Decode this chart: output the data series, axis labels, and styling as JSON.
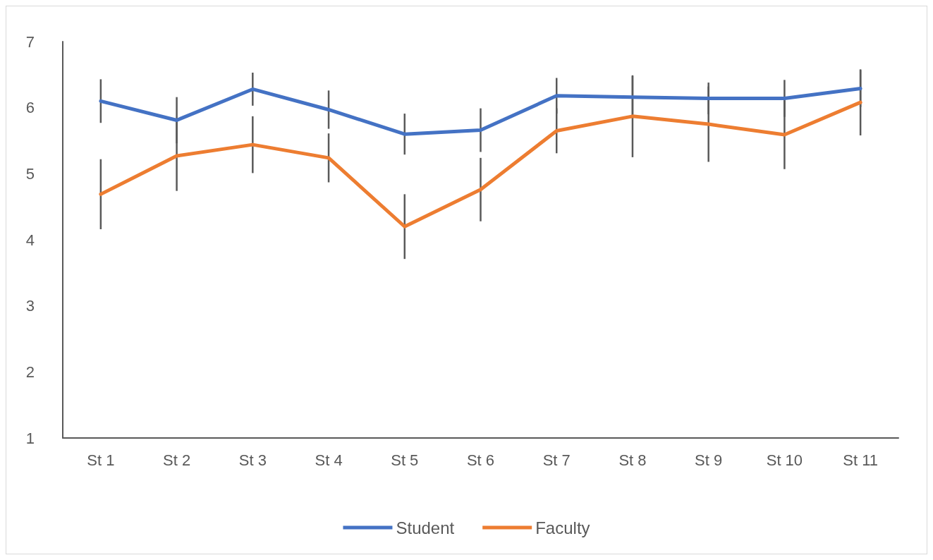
{
  "chart_data": {
    "type": "line",
    "categories": [
      "St 1",
      "St 2",
      "St 3",
      "St 4",
      "St 5",
      "St 6",
      "St 7",
      "St 8",
      "St 9",
      "St 10",
      "St 11"
    ],
    "series": [
      {
        "name": "Student",
        "color": "#4472c4",
        "values": [
          6.1,
          5.81,
          6.28,
          5.97,
          5.6,
          5.66,
          6.18,
          6.16,
          6.14,
          6.14,
          6.29
        ],
        "errors": [
          0.33,
          0.35,
          0.25,
          0.29,
          0.31,
          0.33,
          0.27,
          0.32,
          0.24,
          0.28,
          0.28
        ]
      },
      {
        "name": "Faculty",
        "color": "#ed7d31",
        "values": [
          4.69,
          5.27,
          5.44,
          5.24,
          4.2,
          4.76,
          5.65,
          5.87,
          5.75,
          5.59,
          6.08
        ],
        "errors": [
          0.53,
          0.53,
          0.43,
          0.37,
          0.49,
          0.48,
          0.34,
          0.62,
          0.57,
          0.52,
          0.5
        ]
      }
    ],
    "ylim": [
      1,
      7
    ],
    "yticks": [
      1,
      2,
      3,
      4,
      5,
      6,
      7
    ],
    "grid": false,
    "legend": "bottom",
    "marker": "none",
    "line_style": "solid"
  }
}
